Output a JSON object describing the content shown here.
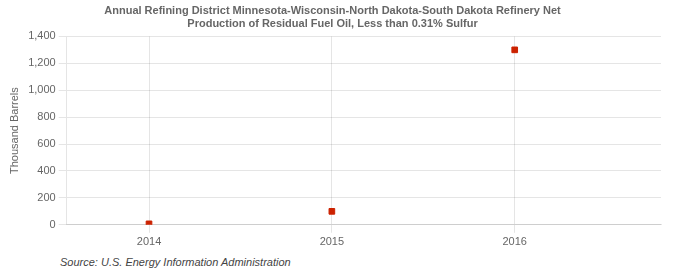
{
  "chart_data": {
    "type": "scatter",
    "title": "Annual Refining District Minnesota-Wisconsin-North Dakota-South Dakota Refinery Net\nProduction of Residual Fuel Oil, Less than 0.31% Sulfur",
    "ylabel": "Thousand Barrels",
    "annotations": [
      "Source: U.S. Energy Information Administration"
    ],
    "x": [
      2014,
      2015,
      2016
    ],
    "values": [
      7,
      100,
      1300
    ],
    "color": "#cc2200",
    "marker": "square",
    "xlim": [
      2013.55,
      2016.8
    ],
    "xticks": [
      2014,
      2015,
      2016
    ],
    "ylim": [
      0,
      1400
    ],
    "yticks": [
      0,
      200,
      400,
      600,
      800,
      {
        "value": 1000,
        "label": "1,000"
      },
      {
        "value": 1200,
        "label": "1,200"
      },
      {
        "value": 1400,
        "label": "1,400"
      }
    ],
    "grid": true
  }
}
